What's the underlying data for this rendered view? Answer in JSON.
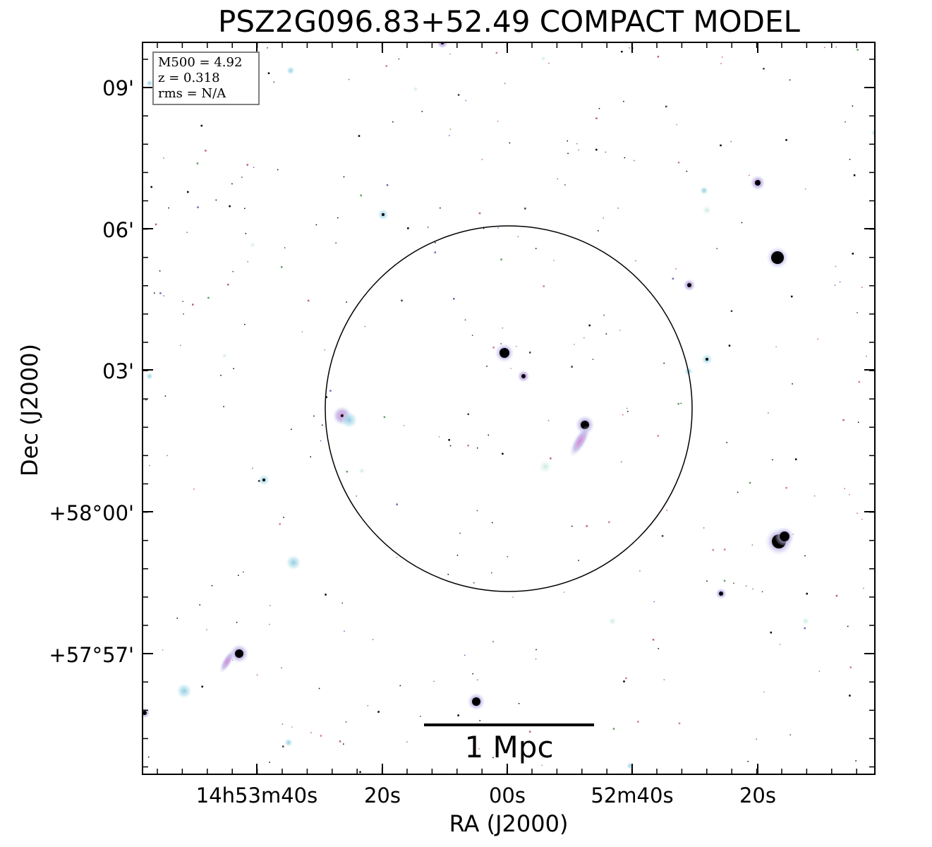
{
  "title": "PSZ2G096.83+52.49 COMPACT MODEL",
  "axes": {
    "xlabel": "RA (J2000)",
    "ylabel": "Dec (J2000)",
    "x_ticks": [
      "14h53m40s",
      "20s",
      "00s",
      "52m40s",
      "20s"
    ],
    "y_ticks": [
      "09'",
      "06'",
      "03'",
      "+58°00'",
      "+57°57'"
    ]
  },
  "info": {
    "m500": "M500 = 4.92",
    "z": "z = 0.318",
    "rms": "rms = N/A"
  },
  "scalebar": {
    "label": "1 Mpc"
  },
  "colors": {
    "circle": "#000000",
    "frame": "#000000",
    "infobox_border": "#808080",
    "source_core": "#000000",
    "halo_cyan": "#9fd8e6",
    "halo_pink": "#e08ad0"
  }
}
